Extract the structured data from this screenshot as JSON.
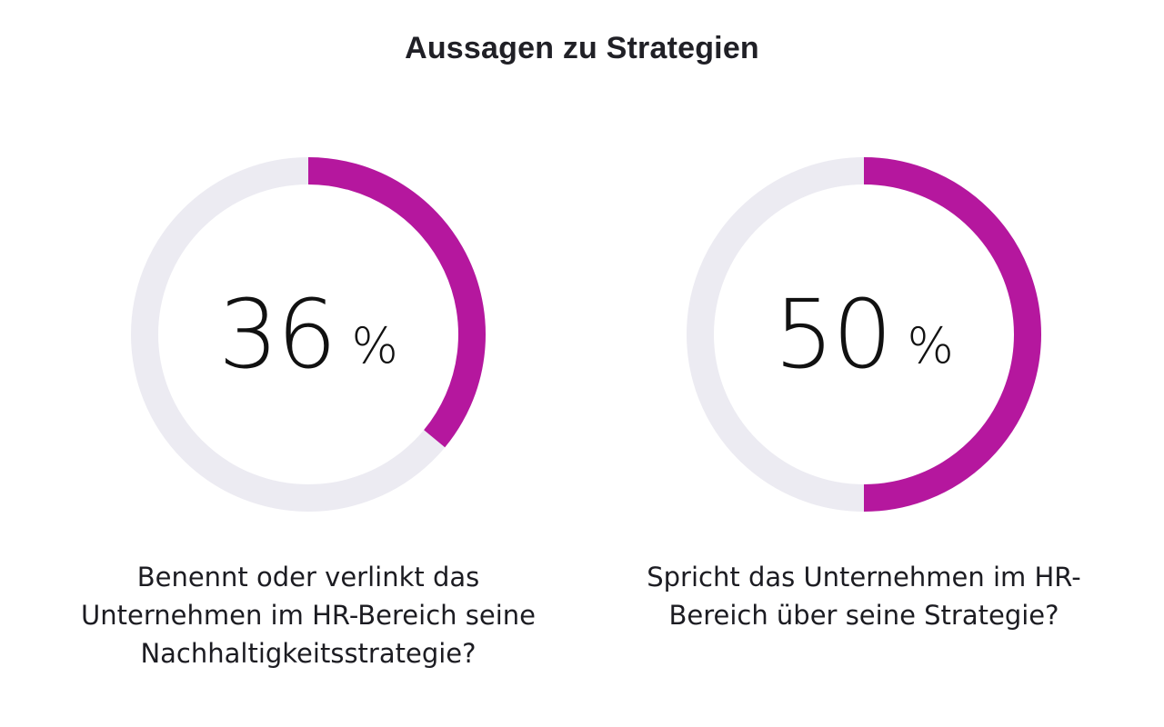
{
  "chart_data": {
    "type": "pie",
    "title": "Aussagen zu Strategien",
    "unit": "%",
    "accent_color": "#b5179e",
    "track_color": "#ecebf2",
    "items": [
      {
        "value": 36,
        "label": "Benennt oder verlinkt das Unternehmen im HR-Bereich seine Nachhaltigkeitsstrategie?"
      },
      {
        "value": 50,
        "label": "Spricht das Unternehmen im HR-Bereich über seine Strategie?"
      }
    ]
  }
}
